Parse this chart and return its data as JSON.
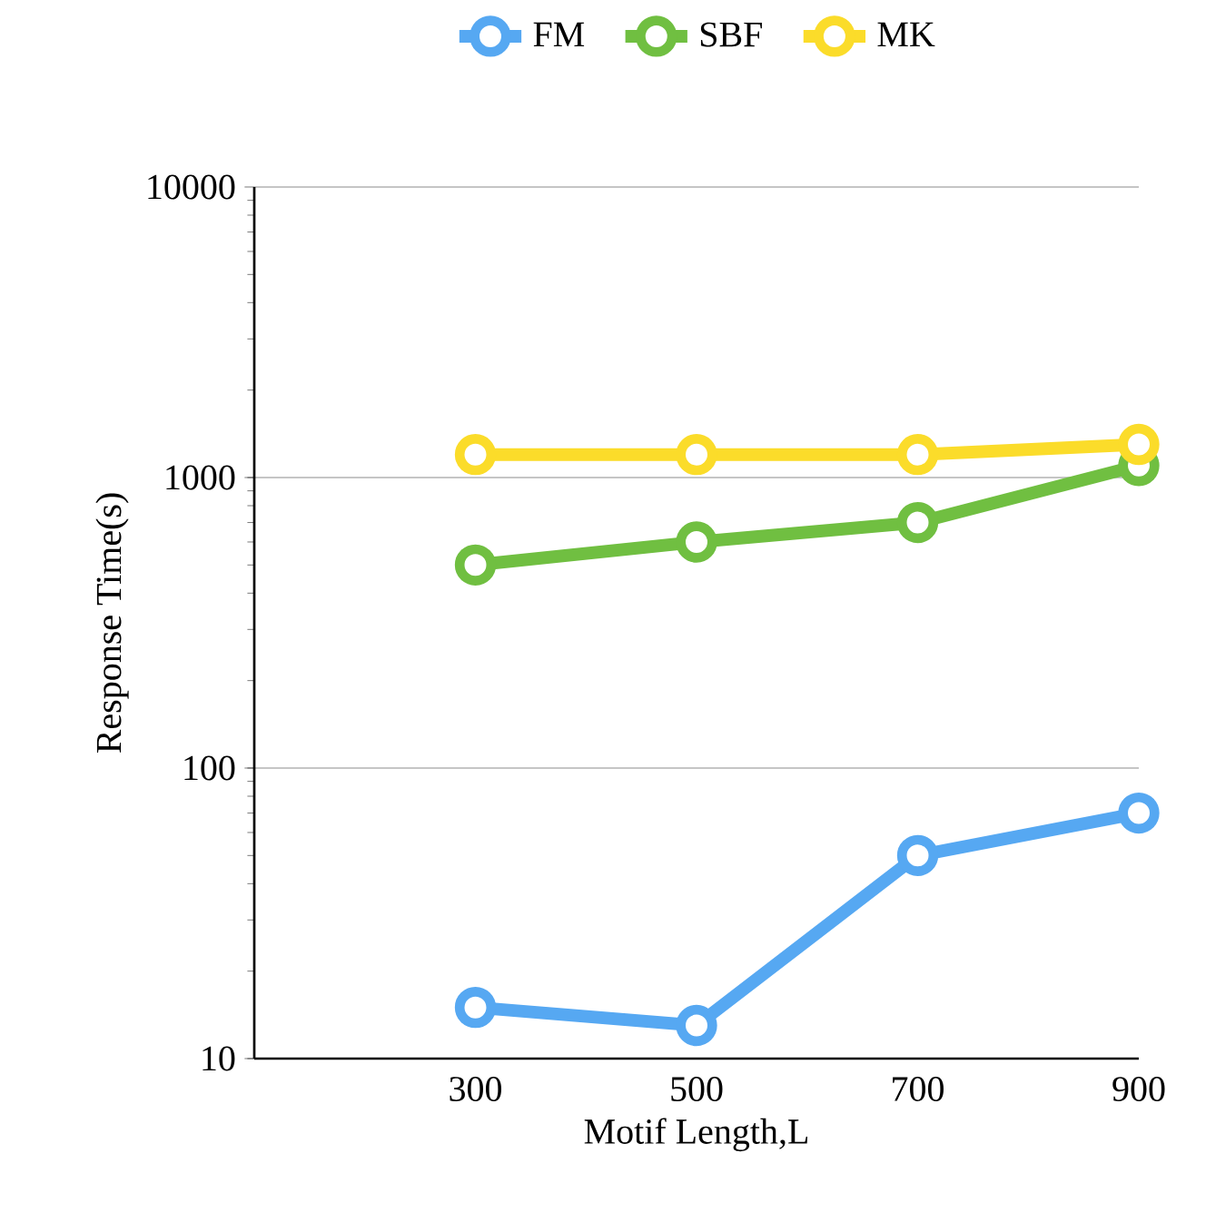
{
  "chart_data": {
    "type": "line",
    "xlabel": "Motif Length,L",
    "ylabel": "Response Time(s)",
    "log": "y",
    "x": [
      300,
      500,
      700,
      900
    ],
    "xlim": [
      100,
      900
    ],
    "xticks": [
      300,
      500,
      700,
      900
    ],
    "ylim": [
      10,
      10000
    ],
    "yticks": [
      10,
      100,
      1000,
      10000
    ],
    "grid": "y",
    "legend": "top",
    "marker": "circle",
    "line_style": "solid",
    "series": [
      {
        "name": "FM",
        "color": "#56a8f2",
        "values": [
          15,
          13,
          50,
          70
        ]
      },
      {
        "name": "SBF",
        "color": "#70bf41",
        "values": [
          500,
          600,
          700,
          1100
        ]
      },
      {
        "name": "MK",
        "color": "#fbdc2a",
        "values": [
          1200,
          1200,
          1200,
          1300
        ]
      }
    ]
  }
}
